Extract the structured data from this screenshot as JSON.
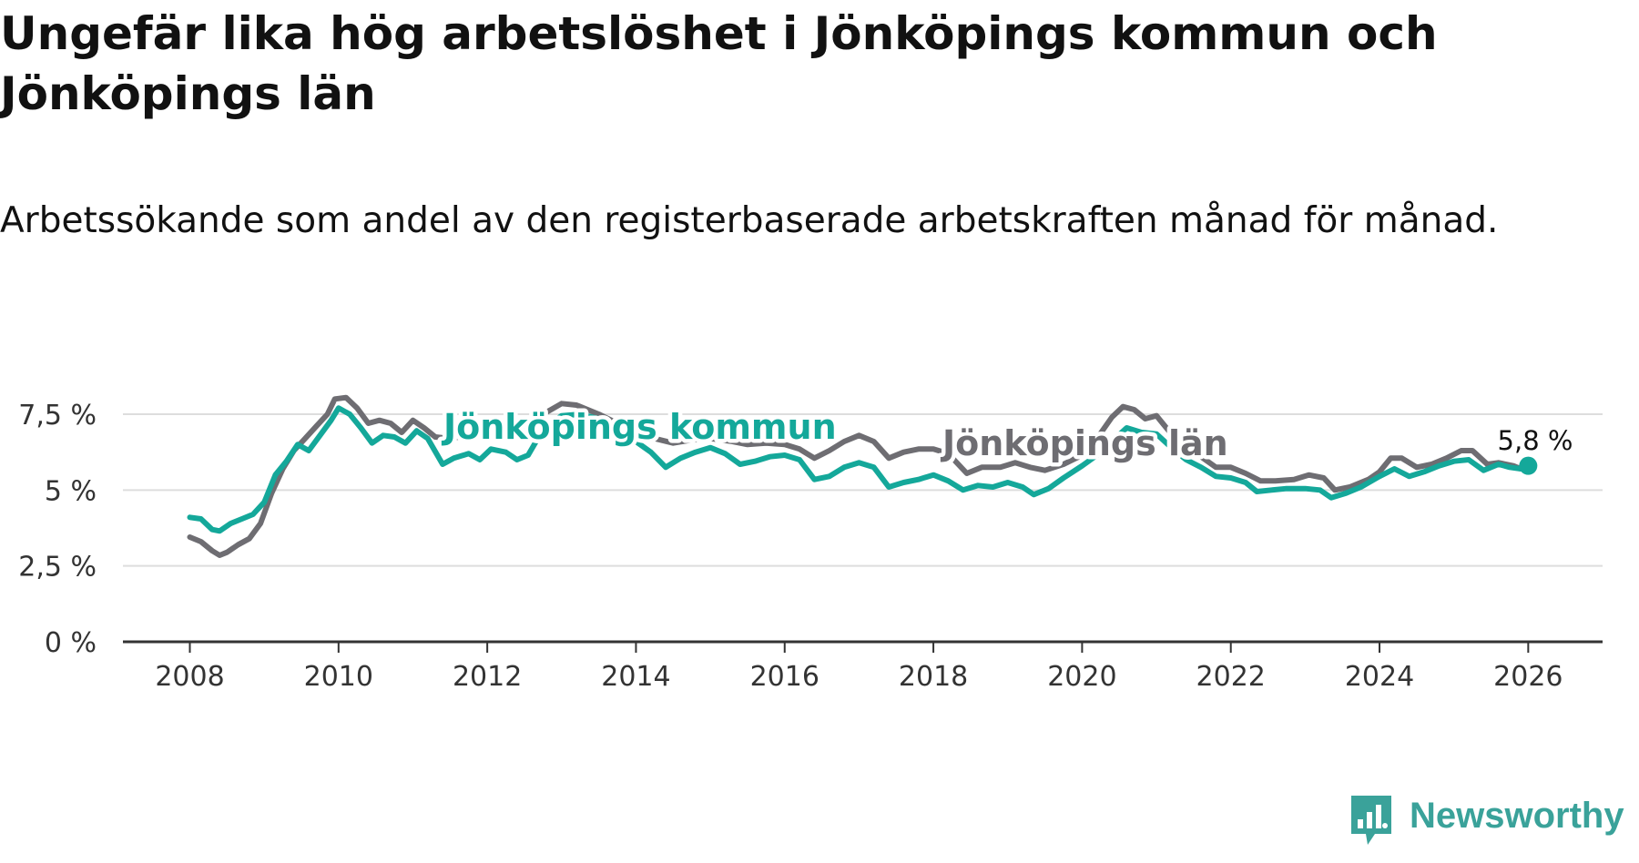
{
  "title": "Ungefär lika hög arbetslöshet i Jönköpings kommun och Jönköpings län",
  "subtitle": "Arbetssökande som andel av den registerbaserade arbetskraften månad för månad.",
  "brand": "Newsworthy",
  "colors": {
    "kommun": "#14a89a",
    "lan": "#6e6d72",
    "grid": "#dddddd",
    "axis": "#333333",
    "brand": "#3aa29a"
  },
  "chart_data": {
    "type": "line",
    "title": "Ungefär lika hög arbetslöshet i Jönköpings kommun och Jönköpings län",
    "xlabel": "",
    "ylabel": "",
    "xlim": [
      2007.1,
      2027.0
    ],
    "ylim": [
      0,
      7.5
    ],
    "x_ticks": [
      2008,
      2010,
      2012,
      2014,
      2016,
      2018,
      2020,
      2022,
      2024,
      2026
    ],
    "x_tick_labels": [
      "2008",
      "2010",
      "2012",
      "2014",
      "2016",
      "2018",
      "2020",
      "2022",
      "2024",
      "2026"
    ],
    "y_ticks": [
      0,
      2.5,
      5,
      7.5
    ],
    "y_tick_labels": [
      "0 %",
      "2,5 %",
      "5 %",
      "7,5 %"
    ],
    "grid": true,
    "series": [
      {
        "name": "Jönköpings län",
        "key": "lan",
        "label_text": "Jönköpings län",
        "points": [
          [
            2008.0,
            3.45
          ],
          [
            2008.15,
            3.3
          ],
          [
            2008.3,
            3.0
          ],
          [
            2008.4,
            2.85
          ],
          [
            2008.5,
            2.95
          ],
          [
            2008.65,
            3.2
          ],
          [
            2008.8,
            3.4
          ],
          [
            2008.95,
            3.9
          ],
          [
            2009.1,
            4.9
          ],
          [
            2009.25,
            5.7
          ],
          [
            2009.4,
            6.3
          ],
          [
            2009.55,
            6.7
          ],
          [
            2009.7,
            7.1
          ],
          [
            2009.85,
            7.5
          ],
          [
            2009.95,
            8.0
          ],
          [
            2010.1,
            8.05
          ],
          [
            2010.25,
            7.7
          ],
          [
            2010.4,
            7.2
          ],
          [
            2010.55,
            7.3
          ],
          [
            2010.7,
            7.2
          ],
          [
            2010.85,
            6.9
          ],
          [
            2011.0,
            7.3
          ],
          [
            2011.15,
            7.05
          ],
          [
            2011.3,
            6.75
          ],
          [
            2011.5,
            6.7
          ],
          [
            2011.75,
            6.8
          ],
          [
            2012.0,
            6.85
          ],
          [
            2012.25,
            6.8
          ],
          [
            2012.5,
            7.0
          ],
          [
            2012.75,
            7.5
          ],
          [
            2013.0,
            7.85
          ],
          [
            2013.2,
            7.8
          ],
          [
            2013.5,
            7.5
          ],
          [
            2013.75,
            7.2
          ],
          [
            2014.0,
            6.95
          ],
          [
            2014.25,
            6.7
          ],
          [
            2014.5,
            6.55
          ],
          [
            2014.75,
            6.65
          ],
          [
            2015.0,
            6.7
          ],
          [
            2015.3,
            6.6
          ],
          [
            2015.5,
            6.5
          ],
          [
            2015.75,
            6.55
          ],
          [
            2016.0,
            6.5
          ],
          [
            2016.2,
            6.35
          ],
          [
            2016.4,
            6.05
          ],
          [
            2016.6,
            6.3
          ],
          [
            2016.8,
            6.6
          ],
          [
            2017.0,
            6.8
          ],
          [
            2017.2,
            6.6
          ],
          [
            2017.4,
            6.05
          ],
          [
            2017.6,
            6.25
          ],
          [
            2017.8,
            6.35
          ],
          [
            2018.0,
            6.35
          ],
          [
            2018.2,
            6.2
          ],
          [
            2018.45,
            5.55
          ],
          [
            2018.65,
            5.75
          ],
          [
            2018.9,
            5.75
          ],
          [
            2019.1,
            5.9
          ],
          [
            2019.3,
            5.75
          ],
          [
            2019.5,
            5.65
          ],
          [
            2019.75,
            5.85
          ],
          [
            2020.0,
            6.15
          ],
          [
            2020.2,
            6.7
          ],
          [
            2020.4,
            7.4
          ],
          [
            2020.55,
            7.75
          ],
          [
            2020.7,
            7.65
          ],
          [
            2020.85,
            7.35
          ],
          [
            2021.0,
            7.45
          ],
          [
            2021.2,
            6.85
          ],
          [
            2021.4,
            6.35
          ],
          [
            2021.6,
            6.1
          ],
          [
            2021.8,
            5.75
          ],
          [
            2022.0,
            5.75
          ],
          [
            2022.2,
            5.55
          ],
          [
            2022.4,
            5.3
          ],
          [
            2022.6,
            5.3
          ],
          [
            2022.85,
            5.35
          ],
          [
            2023.05,
            5.5
          ],
          [
            2023.25,
            5.4
          ],
          [
            2023.4,
            5.0
          ],
          [
            2023.6,
            5.1
          ],
          [
            2023.85,
            5.35
          ],
          [
            2024.0,
            5.6
          ],
          [
            2024.15,
            6.05
          ],
          [
            2024.3,
            6.05
          ],
          [
            2024.5,
            5.75
          ],
          [
            2024.7,
            5.85
          ],
          [
            2024.9,
            6.05
          ],
          [
            2025.1,
            6.3
          ],
          [
            2025.25,
            6.3
          ],
          [
            2025.45,
            5.85
          ],
          [
            2025.6,
            5.9
          ],
          [
            2025.8,
            5.8
          ],
          [
            2025.9,
            5.7
          ],
          [
            2026.0,
            5.75
          ]
        ]
      },
      {
        "name": "Jönköpings kommun",
        "key": "kommun",
        "label_text": "Jönköpings kommun",
        "end_value_label": "5,8 %",
        "points": [
          [
            2008.0,
            4.1
          ],
          [
            2008.15,
            4.05
          ],
          [
            2008.3,
            3.7
          ],
          [
            2008.4,
            3.65
          ],
          [
            2008.55,
            3.9
          ],
          [
            2008.7,
            4.05
          ],
          [
            2008.85,
            4.2
          ],
          [
            2009.0,
            4.6
          ],
          [
            2009.15,
            5.5
          ],
          [
            2009.3,
            5.95
          ],
          [
            2009.45,
            6.5
          ],
          [
            2009.6,
            6.3
          ],
          [
            2009.75,
            6.8
          ],
          [
            2009.9,
            7.3
          ],
          [
            2010.0,
            7.7
          ],
          [
            2010.15,
            7.5
          ],
          [
            2010.3,
            7.05
          ],
          [
            2010.45,
            6.55
          ],
          [
            2010.6,
            6.8
          ],
          [
            2010.75,
            6.75
          ],
          [
            2010.9,
            6.55
          ],
          [
            2011.05,
            6.95
          ],
          [
            2011.2,
            6.7
          ],
          [
            2011.4,
            5.85
          ],
          [
            2011.55,
            6.05
          ],
          [
            2011.75,
            6.2
          ],
          [
            2011.9,
            6.0
          ],
          [
            2012.05,
            6.35
          ],
          [
            2012.25,
            6.25
          ],
          [
            2012.4,
            6.0
          ],
          [
            2012.55,
            6.15
          ],
          [
            2012.75,
            7.0
          ],
          [
            2013.0,
            7.45
          ],
          [
            2013.25,
            7.5
          ],
          [
            2013.5,
            7.35
          ],
          [
            2013.75,
            7.1
          ],
          [
            2014.0,
            6.6
          ],
          [
            2014.2,
            6.25
          ],
          [
            2014.4,
            5.75
          ],
          [
            2014.6,
            6.05
          ],
          [
            2014.8,
            6.25
          ],
          [
            2015.0,
            6.4
          ],
          [
            2015.2,
            6.2
          ],
          [
            2015.4,
            5.85
          ],
          [
            2015.6,
            5.95
          ],
          [
            2015.8,
            6.1
          ],
          [
            2016.0,
            6.15
          ],
          [
            2016.2,
            6.0
          ],
          [
            2016.4,
            5.35
          ],
          [
            2016.6,
            5.45
          ],
          [
            2016.8,
            5.75
          ],
          [
            2017.0,
            5.9
          ],
          [
            2017.2,
            5.75
          ],
          [
            2017.4,
            5.1
          ],
          [
            2017.6,
            5.25
          ],
          [
            2017.8,
            5.35
          ],
          [
            2018.0,
            5.5
          ],
          [
            2018.2,
            5.3
          ],
          [
            2018.4,
            5.0
          ],
          [
            2018.6,
            5.15
          ],
          [
            2018.8,
            5.1
          ],
          [
            2019.0,
            5.25
          ],
          [
            2019.2,
            5.1
          ],
          [
            2019.35,
            4.85
          ],
          [
            2019.55,
            5.05
          ],
          [
            2019.75,
            5.4
          ],
          [
            2020.0,
            5.8
          ],
          [
            2020.2,
            6.15
          ],
          [
            2020.4,
            6.6
          ],
          [
            2020.6,
            7.05
          ],
          [
            2020.8,
            6.9
          ],
          [
            2021.0,
            6.85
          ],
          [
            2021.2,
            6.4
          ],
          [
            2021.4,
            6.0
          ],
          [
            2021.6,
            5.75
          ],
          [
            2021.8,
            5.45
          ],
          [
            2022.0,
            5.4
          ],
          [
            2022.2,
            5.25
          ],
          [
            2022.35,
            4.95
          ],
          [
            2022.55,
            5.0
          ],
          [
            2022.75,
            5.05
          ],
          [
            2023.0,
            5.05
          ],
          [
            2023.2,
            5.0
          ],
          [
            2023.35,
            4.75
          ],
          [
            2023.55,
            4.9
          ],
          [
            2023.75,
            5.1
          ],
          [
            2024.0,
            5.45
          ],
          [
            2024.2,
            5.7
          ],
          [
            2024.4,
            5.45
          ],
          [
            2024.6,
            5.6
          ],
          [
            2024.8,
            5.8
          ],
          [
            2025.0,
            5.95
          ],
          [
            2025.2,
            6.0
          ],
          [
            2025.4,
            5.65
          ],
          [
            2025.6,
            5.85
          ],
          [
            2025.75,
            5.75
          ],
          [
            2025.9,
            5.7
          ],
          [
            2026.0,
            5.8
          ]
        ]
      }
    ]
  }
}
